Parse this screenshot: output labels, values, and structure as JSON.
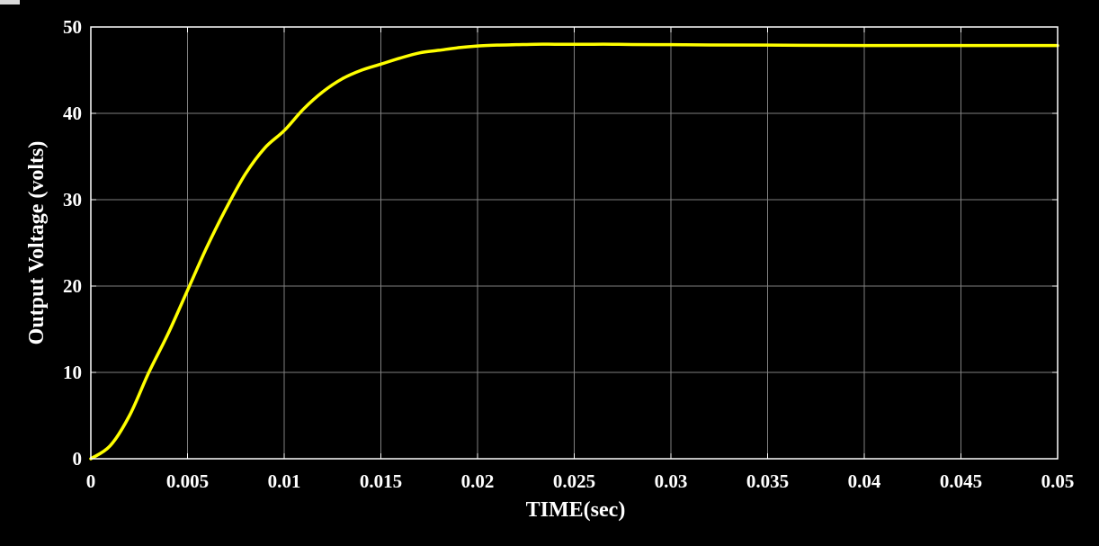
{
  "chart_data": {
    "type": "line",
    "title": "",
    "xlabel": "TIME(sec)",
    "ylabel": "Output Voltage (volts)",
    "xlim": [
      0,
      0.05
    ],
    "ylim": [
      0,
      50
    ],
    "x_ticks": [
      "0",
      "0.005",
      "0.01",
      "0.015",
      "0.02",
      "0.025",
      "0.03",
      "0.035",
      "0.04",
      "0.045",
      "0.05"
    ],
    "x_tick_values": [
      0,
      0.005,
      0.01,
      0.015,
      0.02,
      0.025,
      0.03,
      0.035,
      0.04,
      0.045,
      0.05
    ],
    "y_ticks": [
      "0",
      "10",
      "20",
      "30",
      "40",
      "50"
    ],
    "y_tick_values": [
      0,
      10,
      20,
      30,
      40,
      50
    ],
    "grid": true,
    "background_color": "#000000",
    "axes_color": "#ffffff",
    "grid_color": "#808080",
    "series": [
      {
        "color": "#ffff00",
        "x": [
          0,
          0.001,
          0.002,
          0.003,
          0.004,
          0.005,
          0.006,
          0.007,
          0.008,
          0.009,
          0.01,
          0.011,
          0.012,
          0.013,
          0.014,
          0.015,
          0.016,
          0.017,
          0.018,
          0.019,
          0.02,
          0.021,
          0.022,
          0.023,
          0.024,
          0.025,
          0.026,
          0.027,
          0.028,
          0.03,
          0.032,
          0.035,
          0.04,
          0.045,
          0.05
        ],
        "y": [
          0,
          1.5,
          5.0,
          10.0,
          14.5,
          19.5,
          24.5,
          29.0,
          33.0,
          36.0,
          38.0,
          40.5,
          42.5,
          44.0,
          45.0,
          45.7,
          46.4,
          47.0,
          47.3,
          47.6,
          47.8,
          47.9,
          47.95,
          48.0,
          48.0,
          48.0,
          48.0,
          48.0,
          47.97,
          47.95,
          47.92,
          47.9,
          47.85,
          47.85,
          47.85
        ]
      }
    ]
  }
}
